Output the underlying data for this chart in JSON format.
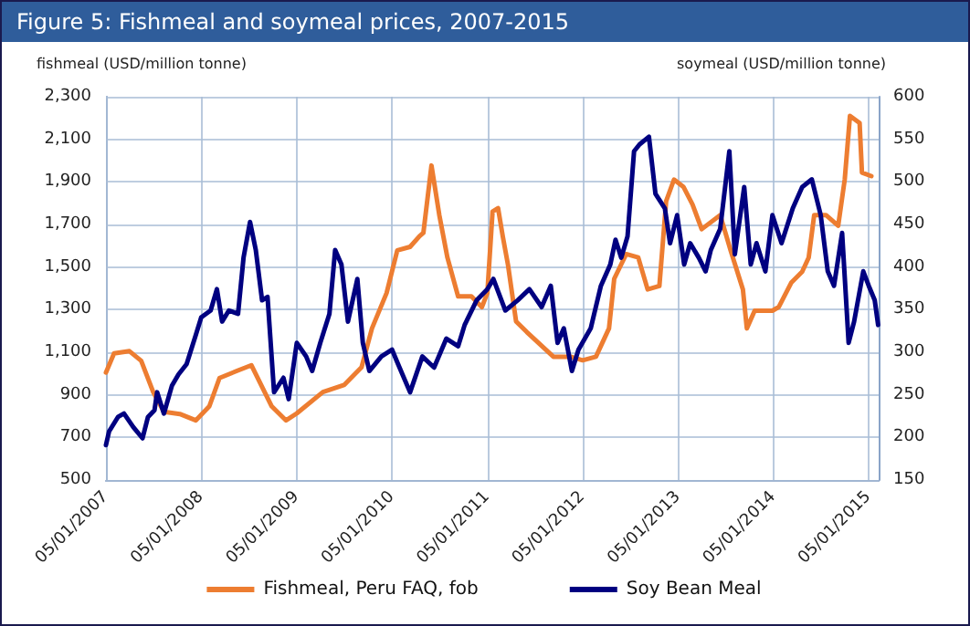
{
  "chart_data": {
    "type": "line",
    "title": "Figure 5: Fishmeal and soymeal prices, 2007-2015",
    "ylabel": "fishmeal (USD/million tonne)",
    "y2label": "soymeal (USD/million tonne)",
    "xlim": [
      "2007-01-05",
      "2015-02-12"
    ],
    "xticks": [
      {
        "value": "2007-01-05",
        "label": "05/01/2007"
      },
      {
        "value": "2008-01-05",
        "label": "05/01/2008"
      },
      {
        "value": "2009-01-05",
        "label": "05/01/2009"
      },
      {
        "value": "2010-01-05",
        "label": "05/01/2010"
      },
      {
        "value": "2011-01-05",
        "label": "05/01/2011"
      },
      {
        "value": "2012-01-05",
        "label": "05/01/2012"
      },
      {
        "value": "2013-01-05",
        "label": "05/01/2013"
      },
      {
        "value": "2014-01-05",
        "label": "05/01/2014"
      },
      {
        "value": "2015-01-05",
        "label": "05/01/2015"
      }
    ],
    "ylim": [
      500,
      2300
    ],
    "yticks": [
      500,
      700,
      900,
      {
        "value": 1100,
        "label": "1,100"
      },
      {
        "value": 1300,
        "label": "1,300"
      },
      {
        "value": 1500,
        "label": "1,500"
      },
      {
        "value": 1700,
        "label": "1,700"
      },
      {
        "value": 1900,
        "label": "1,900"
      },
      {
        "value": 2100,
        "label": "2,100"
      },
      {
        "value": 2300,
        "label": "2,300"
      }
    ],
    "y2lim": [
      150,
      600
    ],
    "y2ticks": [
      150,
      200,
      250,
      300,
      350,
      400,
      450,
      500,
      550,
      600
    ],
    "grid": true,
    "legend": "bottom",
    "marker": "none",
    "line_style": "solid",
    "series": [
      {
        "name": "Fishmeal, Peru FAQ, fob",
        "color": "#ed7d31",
        "x": [
          "2007-01-05",
          "2007-02-05",
          "2007-04-05",
          "2007-05-20",
          "2007-07-05",
          "2007-08-15",
          "2007-10-15",
          "2007-12-15",
          "2008-02-05",
          "2008-03-15",
          "2008-05-20",
          "2008-07-15",
          "2008-10-01",
          "2008-11-25",
          "2009-01-05",
          "2009-04-15",
          "2009-07-05",
          "2009-09-10",
          "2009-10-20",
          "2009-12-15",
          "2010-01-25",
          "2010-03-15",
          "2010-04-20",
          "2010-05-05",
          "2010-06-05",
          "2010-07-05",
          "2010-08-05",
          "2010-09-15",
          "2010-11-05",
          "2010-12-15",
          "2011-01-05",
          "2011-01-25",
          "2011-02-15",
          "2011-03-05",
          "2011-03-25",
          "2011-04-25",
          "2011-06-05",
          "2011-09-15",
          "2011-11-20",
          "2012-01-05",
          "2012-02-25",
          "2012-04-15",
          "2012-05-05",
          "2012-06-20",
          "2012-08-05",
          "2012-09-10",
          "2012-10-25",
          "2012-11-20",
          "2012-12-20",
          "2013-01-25",
          "2013-03-01",
          "2013-04-05",
          "2013-06-15",
          "2013-07-25",
          "2013-09-10",
          "2013-09-25",
          "2013-10-25",
          "2014-01-01",
          "2014-01-25",
          "2014-03-15",
          "2014-04-25",
          "2014-05-20",
          "2014-06-10",
          "2014-07-25",
          "2014-09-10",
          "2014-10-05",
          "2014-10-25",
          "2014-12-01",
          "2014-12-10",
          "2015-01-15"
        ],
        "values": [
          1005,
          1095,
          1105,
          1060,
          913,
          820,
          810,
          780,
          846,
          979,
          1012,
          1039,
          846,
          780,
          813,
          913,
          946,
          1029,
          1212,
          1378,
          1578,
          1595,
          1645,
          1661,
          1977,
          1744,
          1545,
          1362,
          1362,
          1312,
          1378,
          1761,
          1777,
          1645,
          1511,
          1245,
          1195,
          1079,
          1079,
          1062,
          1079,
          1212,
          1445,
          1561,
          1545,
          1395,
          1411,
          1810,
          1911,
          1877,
          1794,
          1678,
          1744,
          1578,
          1395,
          1212,
          1295,
          1295,
          1312,
          1428,
          1478,
          1545,
          1744,
          1744,
          1694,
          1911,
          2210,
          2177,
          1944,
          1927
        ]
      },
      {
        "name": "Soy Bean Meal",
        "color": "#000080",
        "axis": "y2",
        "x": [
          "2007-01-05",
          "2007-01-17",
          "2007-02-20",
          "2007-03-15",
          "2007-04-20",
          "2007-05-25",
          "2007-06-15",
          "2007-07-10",
          "2007-07-20",
          "2007-08-15",
          "2007-09-15",
          "2007-10-10",
          "2007-11-10",
          "2007-12-15",
          "2008-01-05",
          "2008-02-10",
          "2008-03-05",
          "2008-03-25",
          "2008-04-20",
          "2008-05-25",
          "2008-06-15",
          "2008-07-10",
          "2008-08-01",
          "2008-08-25",
          "2008-09-15",
          "2008-10-10",
          "2008-11-15",
          "2008-12-05",
          "2009-01-05",
          "2009-02-10",
          "2009-03-05",
          "2009-04-05",
          "2009-05-10",
          "2009-06-01",
          "2009-06-25",
          "2009-07-20",
          "2009-08-25",
          "2009-09-15",
          "2009-10-10",
          "2009-11-25",
          "2010-01-05",
          "2010-01-28",
          "2010-03-15",
          "2010-05-01",
          "2010-06-15",
          "2010-08-01",
          "2010-09-15",
          "2010-10-10",
          "2010-11-25",
          "2011-01-05",
          "2011-01-28",
          "2011-03-15",
          "2011-05-01",
          "2011-06-15",
          "2011-08-01",
          "2011-09-05",
          "2011-10-01",
          "2011-10-25",
          "2011-11-25",
          "2011-12-20",
          "2012-02-05",
          "2012-03-15",
          "2012-04-20",
          "2012-05-10",
          "2012-06-01",
          "2012-06-25",
          "2012-07-20",
          "2012-08-10",
          "2012-09-15",
          "2012-10-10",
          "2012-11-15",
          "2012-12-05",
          "2013-01-01",
          "2013-01-28",
          "2013-02-20",
          "2013-03-25",
          "2013-04-20",
          "2013-05-10",
          "2013-06-15",
          "2013-07-20",
          "2013-08-10",
          "2013-09-15",
          "2013-10-10",
          "2013-11-01",
          "2013-12-05",
          "2014-01-01",
          "2014-02-05",
          "2014-03-20",
          "2014-04-25",
          "2014-06-01",
          "2014-07-05",
          "2014-08-01",
          "2014-08-25",
          "2014-09-25",
          "2014-10-20",
          "2014-11-10",
          "2014-12-15",
          "2015-01-05",
          "2015-01-28",
          "2015-02-10"
        ],
        "values": [
          191,
          207,
          224,
          228,
          212,
          199,
          224,
          232,
          253,
          228,
          261,
          274,
          286,
          320,
          341,
          349,
          374,
          336,
          349,
          345,
          411,
          453,
          420,
          361,
          365,
          253,
          270,
          245,
          311,
          295,
          278,
          311,
          345,
          420,
          403,
          336,
          386,
          311,
          278,
          295,
          303,
          286,
          253,
          295,
          282,
          316,
          307,
          332,
          361,
          374,
          386,
          349,
          361,
          374,
          353,
          378,
          311,
          328,
          278,
          303,
          328,
          378,
          403,
          432,
          411,
          436,
          536,
          544,
          553,
          486,
          469,
          428,
          461,
          403,
          428,
          411,
          395,
          420,
          445,
          536,
          415,
          494,
          403,
          428,
          395,
          461,
          428,
          469,
          494,
          503,
          461,
          395,
          378,
          440,
          311,
          336,
          395,
          378,
          361,
          332
        ]
      }
    ]
  }
}
